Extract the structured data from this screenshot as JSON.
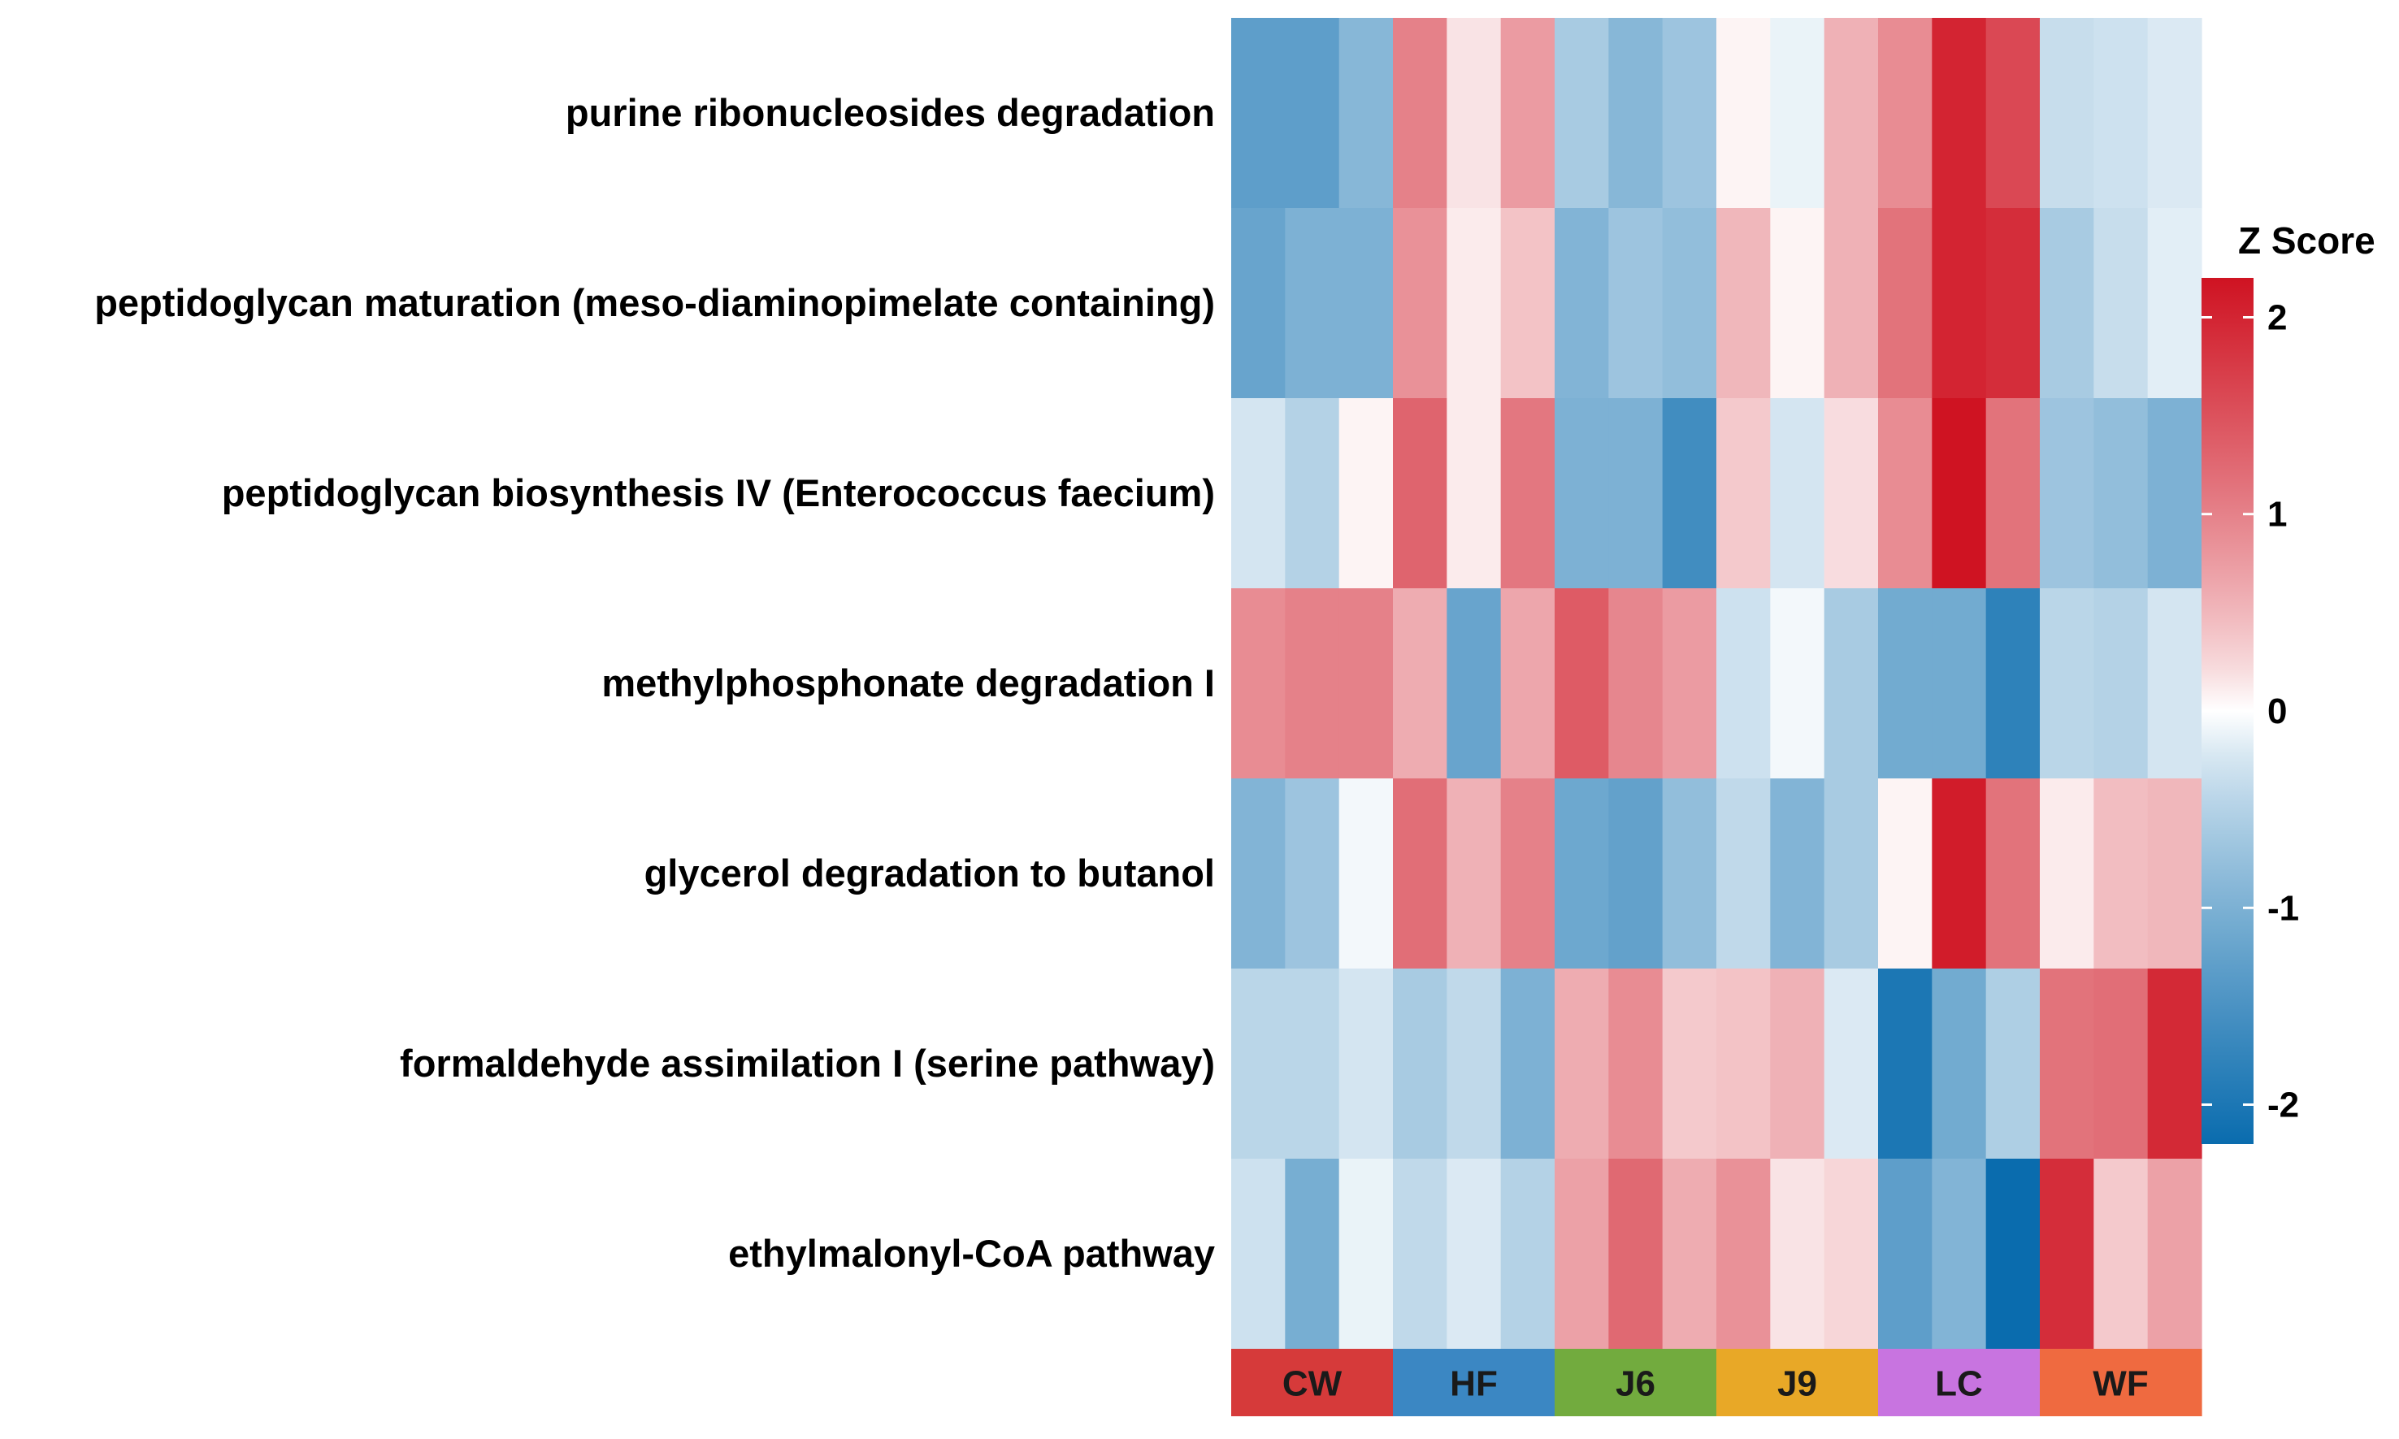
{
  "chart_data": {
    "type": "heatmap",
    "rows": [
      "purine ribonucleosides degradation",
      "peptidoglycan maturation (meso-diaminopimelate containing)",
      "peptidoglycan biosynthesis IV (Enterococcus faecium)",
      "methylphosphonate degradation I",
      "glycerol degradation to butanol",
      "formaldehyde assimilation I (serine pathway)",
      "ethylmalonyl-CoA pathway"
    ],
    "groups": [
      {
        "name": "CW",
        "color": "#d63a3a"
      },
      {
        "name": "HF",
        "color": "#3b87c3"
      },
      {
        "name": "J6",
        "color": "#72ab3e"
      },
      {
        "name": "J9",
        "color": "#e8a827"
      },
      {
        "name": "LC",
        "color": "#c874e0"
      },
      {
        "name": "WF",
        "color": "#ef6a40"
      }
    ],
    "samples_per_group": 3,
    "values": [
      [
        -1.3,
        -1.3,
        -0.9,
        1.0,
        0.15,
        0.75,
        -0.6,
        -0.9,
        -0.7,
        0.05,
        -0.1,
        0.55,
        0.9,
        2.0,
        1.6,
        -0.35,
        -0.3,
        -0.2
      ],
      [
        -1.2,
        -1.0,
        -1.0,
        0.85,
        0.1,
        0.4,
        -0.95,
        -0.7,
        -0.8,
        0.5,
        0.05,
        0.55,
        1.15,
        2.0,
        1.9,
        -0.6,
        -0.35,
        -0.15
      ],
      [
        -0.25,
        -0.5,
        0.05,
        1.3,
        0.1,
        1.1,
        -1.0,
        -1.0,
        -1.6,
        0.35,
        -0.25,
        0.2,
        0.9,
        2.2,
        1.15,
        -0.7,
        -0.8,
        -1.0
      ],
      [
        0.9,
        1.0,
        1.0,
        0.6,
        -1.2,
        0.65,
        1.4,
        0.95,
        0.75,
        -0.3,
        -0.05,
        -0.6,
        -1.1,
        -1.1,
        -1.8,
        -0.45,
        -0.5,
        -0.25
      ],
      [
        -0.95,
        -0.7,
        -0.05,
        1.2,
        0.55,
        1.0,
        -1.15,
        -1.25,
        -0.8,
        -0.4,
        -0.95,
        -0.6,
        0.05,
        2.1,
        1.15,
        0.1,
        0.45,
        0.5
      ],
      [
        -0.45,
        -0.45,
        -0.25,
        -0.6,
        -0.4,
        -1.0,
        0.6,
        0.9,
        0.35,
        0.4,
        0.55,
        -0.2,
        -2.0,
        -1.1,
        -0.55,
        1.15,
        1.2,
        1.95
      ],
      [
        -0.3,
        -1.05,
        -0.1,
        -0.4,
        -0.2,
        -0.5,
        0.7,
        1.25,
        0.6,
        0.85,
        0.15,
        0.25,
        -1.3,
        -0.95,
        -2.2,
        1.9,
        0.35,
        0.7
      ]
    ],
    "color_scale": {
      "min": -2.2,
      "max": 2.2,
      "low_color": "#0a6cae",
      "mid_color": "#ffffff",
      "high_color": "#cf1322"
    },
    "legend": {
      "title": "Z Score",
      "ticks": [
        2,
        1,
        0,
        -1,
        -2
      ],
      "tick_labels": [
        "2",
        "1",
        "0",
        "-1",
        "-2"
      ],
      "placement": "right"
    }
  }
}
